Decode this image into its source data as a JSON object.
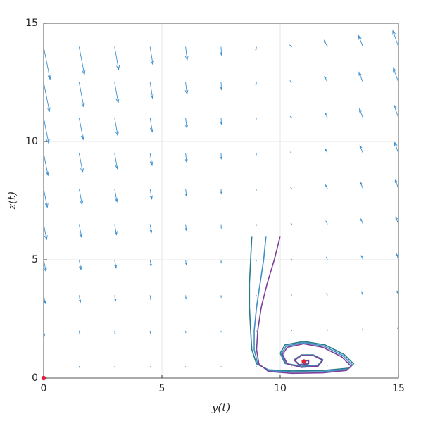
{
  "chart_data": {
    "type": "phase-portrait",
    "xlabel": "y(t)",
    "ylabel": "z(t)",
    "xlim": [
      0,
      15
    ],
    "ylim": [
      0,
      15
    ],
    "xticks": [
      0,
      5,
      10,
      15
    ],
    "yticks": [
      0,
      5,
      10,
      15
    ],
    "grid": true,
    "quiver": {
      "color": "#3b8fd0",
      "grid_x": [
        0,
        1.5,
        3,
        4.5,
        6,
        7.5,
        9,
        10.5,
        12,
        13.5,
        15
      ],
      "grid_y": [
        0.5,
        2,
        3.5,
        5,
        6.5,
        8,
        9.5,
        11,
        12.5,
        14
      ],
      "u": [
        [
          0.08,
          0.065,
          0.05,
          0.035,
          0.02,
          0.005,
          -0.01,
          -0.025,
          -0.04,
          -0.055,
          -0.07
        ],
        [
          0.32,
          0.26,
          0.2,
          0.14,
          0.08,
          0.02,
          -0.04,
          -0.1,
          -0.16,
          -0.22,
          -0.28
        ],
        [
          0.56,
          0.455,
          0.35,
          0.245,
          0.14,
          0.035,
          -0.07,
          -0.175,
          -0.28,
          -0.385,
          -0.49
        ],
        [
          0.8,
          0.65,
          0.5,
          0.35,
          0.2,
          0.05,
          -0.1,
          -0.25,
          -0.4,
          -0.55,
          -0.7
        ],
        [
          1.04,
          0.845,
          0.65,
          0.455,
          0.26,
          0.065,
          -0.13,
          -0.325,
          -0.52,
          -0.715,
          -0.91
        ],
        [
          1.28,
          1.04,
          0.8,
          0.56,
          0.32,
          0.08,
          -0.16,
          -0.4,
          -0.64,
          -0.88,
          -1.12
        ],
        [
          1.52,
          1.235,
          0.95,
          0.665,
          0.38,
          0.095,
          -0.19,
          -0.475,
          -0.76,
          -1.045,
          -1.33
        ],
        [
          1.76,
          1.43,
          1.1,
          0.77,
          0.44,
          0.11,
          -0.22,
          -0.55,
          -0.88,
          -1.21,
          -1.54
        ],
        [
          2,
          1.625,
          1.25,
          0.875,
          0.5,
          0.125,
          -0.25,
          -0.625,
          -1,
          -1.375,
          -1.75
        ],
        [
          2.24,
          1.82,
          1.4,
          0.98,
          0.56,
          0.14,
          -0.28,
          -0.7,
          -1.12,
          -1.54,
          -1.96
        ]
      ],
      "v": [
        [
          -0.4,
          -0.34,
          -0.28,
          -0.22,
          -0.16,
          -0.1,
          -0.04,
          0.02,
          0.08,
          0.14,
          0.2
        ],
        [
          -1.6,
          -1.36,
          -1.12,
          -0.88,
          -0.64,
          -0.4,
          -0.16,
          0.08,
          0.32,
          0.56,
          0.8
        ],
        [
          -2.8,
          -2.38,
          -1.96,
          -1.54,
          -1.12,
          -0.7,
          -0.28,
          0.14,
          0.56,
          0.98,
          1.4
        ],
        [
          -4,
          -3.4,
          -2.8,
          -2.2,
          -1.6,
          -1,
          -0.4,
          0.2,
          0.8,
          1.4,
          2
        ],
        [
          -5.2,
          -4.42,
          -3.64,
          -2.86,
          -2.08,
          -1.3,
          -0.52,
          0.26,
          1.04,
          1.82,
          2.6
        ],
        [
          -6.4,
          -5.44,
          -4.48,
          -3.52,
          -2.56,
          -1.6,
          -0.64,
          0.32,
          1.28,
          2.24,
          3.2
        ],
        [
          -7.6,
          -6.46,
          -5.32,
          -4.18,
          -3.04,
          -1.9,
          -0.76,
          0.38,
          1.52,
          2.66,
          3.8
        ],
        [
          -8.8,
          -7.48,
          -6.16,
          -4.84,
          -3.52,
          -2.2,
          -0.88,
          0.44,
          1.76,
          3.08,
          4.4
        ],
        [
          -10,
          -8.5,
          -7,
          -5.5,
          -4,
          -2.5,
          -1,
          0.5,
          2,
          3.5,
          5
        ],
        [
          -11.2,
          -9.52,
          -7.84,
          -6.16,
          -4.48,
          -2.8,
          -1.12,
          0.56,
          2.24,
          3.92,
          5.6
        ]
      ]
    },
    "series": [
      {
        "color": "#2a7d8c",
        "x": [
          8.8,
          8.75,
          8.7,
          8.7,
          8.75,
          8.8,
          9.0,
          9.5,
          10.5,
          11.8,
          12.9,
          13.1,
          12.7,
          11.9,
          11.0,
          10.2,
          10.0,
          10.2,
          10.9,
          11.6,
          11.8,
          11.4,
          10.9,
          10.6,
          10.8,
          11.2,
          11.2,
          11
        ],
        "y": [
          6,
          5,
          4,
          3,
          2,
          1.2,
          0.6,
          0.35,
          0.3,
          0.32,
          0.42,
          0.6,
          1.0,
          1.4,
          1.55,
          1.4,
          1.05,
          0.62,
          0.5,
          0.55,
          0.78,
          0.98,
          0.98,
          0.78,
          0.57,
          0.62,
          0.76,
          0.7
        ]
      },
      {
        "color": "#3d8fc4",
        "x": [
          9.4,
          9.3,
          9.15,
          9.0,
          8.9,
          8.9,
          9.05,
          9.5,
          10.5,
          11.8,
          12.85,
          13.05,
          12.65,
          11.85,
          11.0,
          10.25,
          10.05,
          10.25,
          10.9,
          11.6,
          11.8,
          11.4,
          10.9,
          10.6,
          10.8,
          11.2,
          11.2,
          11
        ],
        "y": [
          6,
          5,
          4,
          3,
          2,
          1.2,
          0.6,
          0.32,
          0.25,
          0.27,
          0.37,
          0.55,
          0.95,
          1.35,
          1.5,
          1.35,
          1.02,
          0.61,
          0.47,
          0.52,
          0.76,
          0.96,
          0.96,
          0.76,
          0.56,
          0.61,
          0.75,
          0.7
        ]
      },
      {
        "color": "#7e3f9a",
        "x": [
          10,
          9.75,
          9.45,
          9.2,
          9.05,
          9.0,
          9.1,
          9.5,
          10.5,
          11.8,
          12.8,
          13.0,
          12.6,
          11.8,
          11.0,
          10.3,
          10.1,
          10.3,
          10.9,
          11.6,
          11.8,
          11.4,
          10.9,
          10.6,
          10.8,
          11.2,
          11.2,
          11
        ],
        "y": [
          6,
          5,
          4,
          3,
          2,
          1.2,
          0.6,
          0.28,
          0.2,
          0.22,
          0.32,
          0.5,
          0.9,
          1.3,
          1.45,
          1.3,
          1.0,
          0.6,
          0.45,
          0.5,
          0.75,
          0.95,
          0.95,
          0.75,
          0.55,
          0.6,
          0.75,
          0.7
        ]
      }
    ],
    "equilibria": {
      "color": "#e0203a",
      "x": [
        0,
        11
      ],
      "y": [
        0,
        0.7
      ]
    }
  }
}
